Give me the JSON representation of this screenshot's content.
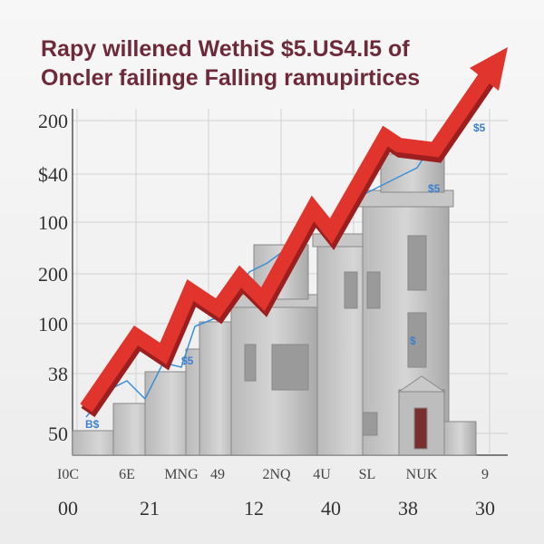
{
  "title": {
    "lines": [
      "Rapy willened WethiS $5.US4.I5 of",
      "Oncler failinge Falling ramupirtices"
    ]
  },
  "left_labels": [
    "200",
    "$40",
    "100",
    "200",
    "100",
    "38",
    "50"
  ],
  "x_labels": [
    "I0C",
    "6E",
    "MNG",
    "49",
    "2NQ",
    "4U",
    "SL",
    "NUK",
    "9"
  ],
  "bottom_labels": [
    "00",
    "21",
    "12",
    "40",
    "38",
    "30"
  ],
  "annotations": [
    "$5",
    "$5",
    "$",
    "B$",
    "$5"
  ]
}
